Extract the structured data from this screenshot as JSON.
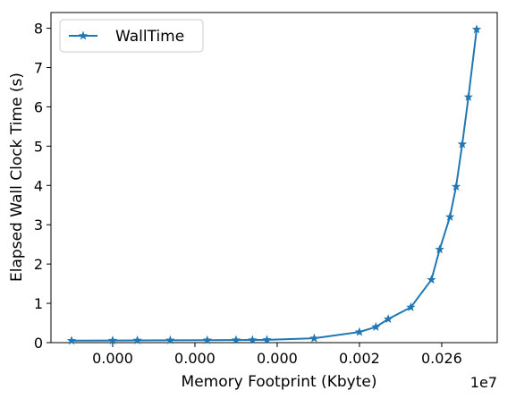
{
  "chart_data": {
    "type": "line",
    "title": "",
    "xlabel": "Memory Footprint (Kbyte)",
    "ylabel": "Elapsed Wall Clock Time (s)",
    "x_offset_text": "1e7",
    "x_tick_labels": [
      "0.000",
      "0.000",
      "0.000",
      "0.002",
      "0.026"
    ],
    "y_tick_labels": [
      "0",
      "1",
      "2",
      "3",
      "4",
      "5",
      "6",
      "7",
      "8"
    ],
    "ylim": [
      0,
      8.4
    ],
    "grid": false,
    "legend_position": "top-left",
    "series": [
      {
        "name": "WallTime",
        "color": "#1f77b4",
        "marker": "star",
        "points": [
          {
            "x": 0.0,
            "y": 0.05
          },
          {
            "x": 1.0,
            "y": 0.055
          },
          {
            "x": 1.6,
            "y": 0.058
          },
          {
            "x": 2.4,
            "y": 0.06
          },
          {
            "x": 3.3,
            "y": 0.062
          },
          {
            "x": 4.0,
            "y": 0.066
          },
          {
            "x": 4.4,
            "y": 0.068
          },
          {
            "x": 4.75,
            "y": 0.07
          },
          {
            "x": 5.9,
            "y": 0.11
          },
          {
            "x": 7.0,
            "y": 0.27
          },
          {
            "x": 7.4,
            "y": 0.4
          },
          {
            "x": 7.7,
            "y": 0.6
          },
          {
            "x": 8.25,
            "y": 0.9
          },
          {
            "x": 8.75,
            "y": 1.6
          },
          {
            "x": 8.95,
            "y": 2.37
          },
          {
            "x": 9.2,
            "y": 3.2
          },
          {
            "x": 9.35,
            "y": 3.97
          },
          {
            "x": 9.5,
            "y": 5.05
          },
          {
            "x": 9.65,
            "y": 6.25
          },
          {
            "x": 9.85,
            "y": 7.97
          }
        ]
      }
    ]
  }
}
